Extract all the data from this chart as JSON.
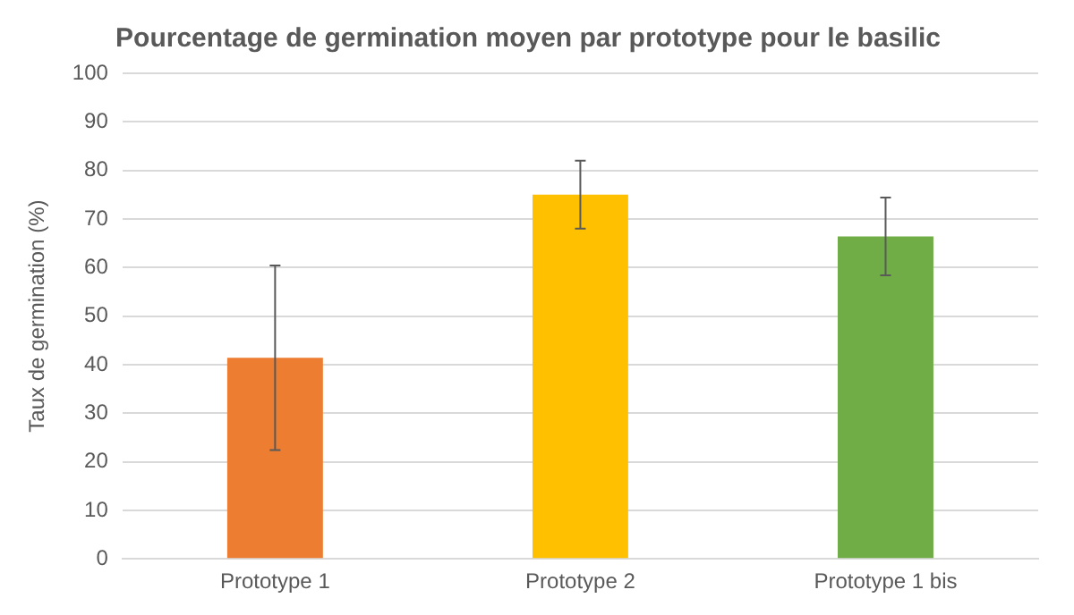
{
  "chart_data": {
    "type": "bar",
    "title": "Pourcentage de germination moyen par prototype pour le basilic",
    "ylabel": "Taux de germination (%)",
    "categories": [
      "Prototype 1",
      "Prototype 2",
      "Prototype 1 bis"
    ],
    "values": [
      41.4,
      75,
      66.4
    ],
    "colors": [
      "#ed7d31",
      "#ffc000",
      "#70ad47"
    ],
    "errors": [
      19,
      7,
      8
    ],
    "ylim": [
      0,
      100
    ],
    "yticks": [
      0,
      10,
      20,
      30,
      40,
      50,
      60,
      70,
      80,
      90,
      100
    ],
    "grid": "y",
    "legend": false
  }
}
